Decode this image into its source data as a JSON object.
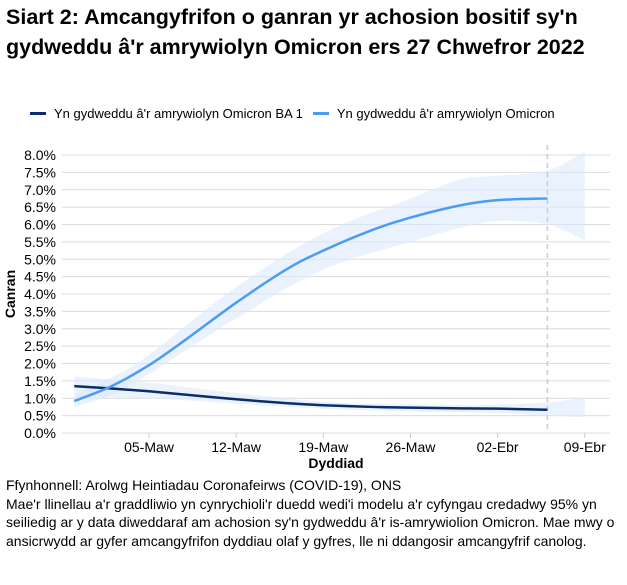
{
  "chart_data": {
    "type": "line",
    "title": "Siart 2: Amcangyfrifon o ganran yr achosion bositif sy'n gydweddu â'r amrywiolyn Omicron ers 27 Chwefror 2022",
    "xlabel": "Dyddiad",
    "ylabel": "Canran",
    "ylim": [
      0,
      8
    ],
    "yticks": [
      "0.0%",
      "0.5%",
      "1.0%",
      "1.5%",
      "2.0%",
      "2.5%",
      "3.0%",
      "3.5%",
      "4.0%",
      "4.5%",
      "5.0%",
      "5.5%",
      "6.0%",
      "6.5%",
      "7.0%",
      "7.5%",
      "8.0%"
    ],
    "xticks": [
      {
        "day": 6,
        "label": "05-Maw"
      },
      {
        "day": 13,
        "label": "12-Maw"
      },
      {
        "day": 20,
        "label": "19-Maw"
      },
      {
        "day": 27,
        "label": "26-Maw"
      },
      {
        "day": 34,
        "label": "02-Ebr"
      },
      {
        "day": 41,
        "label": "09-Ebr"
      }
    ],
    "x_unit": "days since 27 Feb 2022",
    "xlim": [
      -1,
      43
    ],
    "last_data_day": 38,
    "legend_position": "top",
    "series": [
      {
        "name": "Yn gydweddu â'r amrywiolyn Omicron BA 1",
        "color": "#0b2d6b",
        "x": [
          0,
          3,
          6,
          9,
          13,
          17,
          20,
          24,
          27,
          31,
          34,
          38
        ],
        "y": [
          1.35,
          1.28,
          1.2,
          1.1,
          0.97,
          0.86,
          0.8,
          0.75,
          0.73,
          0.71,
          0.7,
          0.67
        ],
        "ci_x": [
          0,
          6,
          13,
          20,
          27,
          34,
          38,
          41
        ],
        "ci_lo": [
          1.05,
          1.0,
          0.85,
          0.7,
          0.62,
          0.58,
          0.5,
          0.45
        ],
        "ci_hi": [
          1.62,
          1.45,
          1.15,
          0.9,
          0.82,
          0.82,
          0.88,
          1.02
        ]
      },
      {
        "name": "Yn gydweddu â'r amrywiolyn Omicron",
        "color": "#4c9bf5",
        "x": [
          0,
          3,
          6,
          9,
          13,
          17,
          20,
          24,
          27,
          31,
          34,
          38
        ],
        "y": [
          0.92,
          1.35,
          1.95,
          2.7,
          3.75,
          4.7,
          5.25,
          5.85,
          6.2,
          6.55,
          6.7,
          6.75
        ],
        "ci_x": [
          0,
          3,
          6,
          13,
          20,
          27,
          31,
          34,
          38,
          41
        ],
        "ci_lo": [
          0.75,
          1.1,
          1.7,
          3.3,
          4.7,
          5.5,
          5.9,
          6.1,
          6.0,
          5.55
        ],
        "ci_hi": [
          1.1,
          1.6,
          2.25,
          4.2,
          5.75,
          6.75,
          7.3,
          7.4,
          7.55,
          8.1
        ]
      }
    ]
  },
  "notes": {
    "source": "Ffynhonnell: Arolwg Heintiadau Coronafeirws (COVID-19), ONS",
    "description": "Mae'r llinellau a'r graddliwio yn cynrychioli'r duedd wedi'i modelu a'r cyfyngau credadwy 95% yn seiliedig ar y data diweddaraf am achosion sy'n gydweddu â'r is-amrywiolion Omicron. Mae mwy o ansicrwydd ar gyfer amcangyfrifon dyddiau olaf y gyfres, lle ni ddangosir amcangyfrif canolog."
  }
}
